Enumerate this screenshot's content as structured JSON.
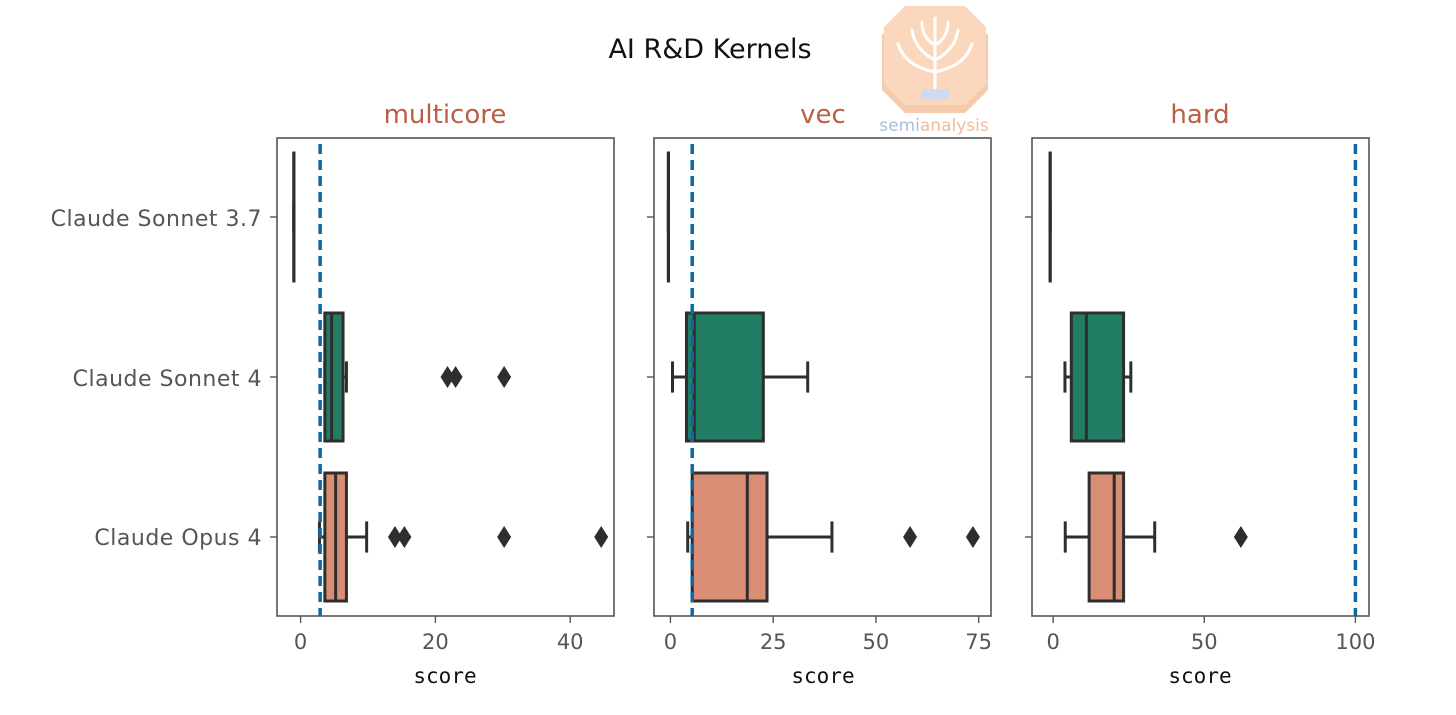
{
  "chart_data": {
    "type": "box",
    "title": "AI R&D Kernels",
    "categories": [
      "Claude Sonnet 3.7",
      "Claude Sonnet 4",
      "Claude Opus 4"
    ],
    "colors": {
      "Claude Sonnet 3.7": "#e3e3e3",
      "Claude Sonnet 4": "#217d63",
      "Claude Opus 4": "#d98d74",
      "threshold_line": "#0a6aa1",
      "panel_title": "#b85f46"
    },
    "grid": false,
    "panels": [
      {
        "title": "multicore",
        "xlabel": "score",
        "xlim": [
          -3.5,
          46.5
        ],
        "xticks": [
          0,
          20,
          40
        ],
        "threshold": 2.9,
        "boxes": [
          {
            "category": "Claude Sonnet 3.7",
            "whislo": -1.0,
            "q1": -1.0,
            "med": -1.0,
            "q3": -1.0,
            "whishi": -1.0,
            "fliers": []
          },
          {
            "category": "Claude Sonnet 4",
            "whislo": 3.6,
            "q1": 3.6,
            "med": 4.6,
            "q3": 6.3,
            "whishi": 6.8,
            "fliers": [
              21.8,
              23.0,
              30.2
            ]
          },
          {
            "category": "Claude Opus 4",
            "whislo": 2.8,
            "q1": 3.6,
            "med": 5.2,
            "q3": 6.8,
            "whishi": 9.8,
            "fliers": [
              14.0,
              15.4,
              30.2,
              44.6
            ]
          }
        ]
      },
      {
        "title": "vec",
        "xlabel": "score",
        "xlim": [
          -4,
          78
        ],
        "xticks": [
          0,
          25,
          50,
          75
        ],
        "threshold": 5.3,
        "boxes": [
          {
            "category": "Claude Sonnet 3.7",
            "whislo": -0.5,
            "q1": -0.5,
            "med": -0.5,
            "q3": -0.5,
            "whishi": -0.5,
            "fliers": []
          },
          {
            "category": "Claude Sonnet 4",
            "whislo": 0.5,
            "q1": 3.9,
            "med": 5.8,
            "q3": 22.6,
            "whishi": 33.4,
            "fliers": []
          },
          {
            "category": "Claude Opus 4",
            "whislo": 4.2,
            "q1": 5.3,
            "med": 18.7,
            "q3": 23.5,
            "whishi": 39.3,
            "fliers": [
              58.3,
              73.6
            ]
          }
        ]
      },
      {
        "title": "hard",
        "xlabel": "score",
        "xlim": [
          -7,
          104.5
        ],
        "xticks": [
          0,
          50,
          100
        ],
        "threshold": 100,
        "boxes": [
          {
            "category": "Claude Sonnet 3.7",
            "whislo": -1.0,
            "q1": -1.0,
            "med": -1.0,
            "q3": -1.0,
            "whishi": -1.0,
            "fliers": []
          },
          {
            "category": "Claude Sonnet 4",
            "whislo": 3.9,
            "q1": 6.0,
            "med": 11.0,
            "q3": 23.3,
            "whishi": 25.7,
            "fliers": []
          },
          {
            "category": "Claude Opus 4",
            "whislo": 4.0,
            "q1": 11.9,
            "med": 20.2,
            "q3": 23.3,
            "whishi": 33.6,
            "fliers": [
              62.1
            ]
          }
        ]
      }
    ]
  },
  "watermark": {
    "text_part1": "semi",
    "text_part2": "analysis",
    "color_part1": "#9fb6dc",
    "color_part2": "#f1b48e",
    "badge_color": "#fbd3b7"
  }
}
